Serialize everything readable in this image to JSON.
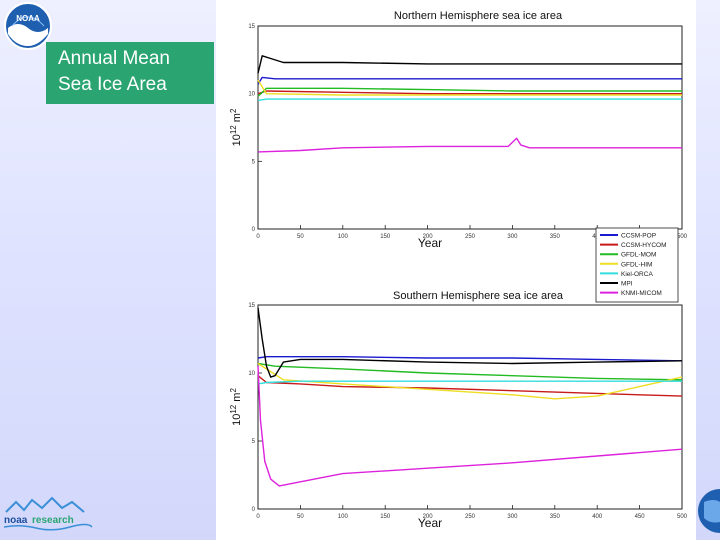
{
  "slide": {
    "title_line1": "Annual Mean",
    "title_line2": "Sea Ice Area",
    "logo_text": "NOAA",
    "footer_logo_a": "noaa",
    "footer_logo_b": "research",
    "colors": {
      "title_box": "#2aa571",
      "background": "#dfe3ff"
    }
  },
  "legend": [
    {
      "label": "CCSM-POP",
      "color": "#1a1acf"
    },
    {
      "label": "CCSM-HYCOM",
      "color": "#c81a1a"
    },
    {
      "label": "GFDL-MOM",
      "color": "#22bb22"
    },
    {
      "label": "GFDL-HIM",
      "color": "#eedd22"
    },
    {
      "label": "Kiel-ORCA",
      "color": "#33dddd"
    },
    {
      "label": "MPI",
      "color": "#000000"
    },
    {
      "label": "KNMI-MICOM",
      "color": "#dd22dd"
    }
  ],
  "chart_data": [
    {
      "type": "line",
      "title": "Northern Hemisphere sea ice area",
      "xlabel": "Year",
      "ylabel": "10^12 m^2",
      "xlim": [
        0,
        500
      ],
      "ylim": [
        0,
        15
      ],
      "xticks": [
        0,
        50,
        100,
        150,
        200,
        250,
        300,
        350,
        400,
        450,
        500
      ],
      "yticks": [
        0,
        5,
        10,
        15
      ],
      "series": [
        {
          "name": "CCSM-POP",
          "x": [
            0,
            5,
            20,
            100,
            200,
            300,
            400,
            500
          ],
          "y": [
            10.7,
            11.2,
            11.1,
            11.1,
            11.1,
            11.1,
            11.1,
            11.1
          ]
        },
        {
          "name": "CCSM-HYCOM",
          "x": [
            0,
            10,
            100,
            200,
            250,
            300,
            400,
            500
          ],
          "y": [
            10.0,
            10.2,
            10.1,
            10.0,
            10.0,
            10.0,
            10.0,
            10.0
          ]
        },
        {
          "name": "GFDL-MOM",
          "x": [
            0,
            10,
            100,
            200,
            300,
            400,
            500
          ],
          "y": [
            9.8,
            10.4,
            10.4,
            10.3,
            10.2,
            10.2,
            10.2
          ]
        },
        {
          "name": "GFDL-HIM",
          "x": [
            0,
            10,
            100,
            200,
            300,
            400,
            500
          ],
          "y": [
            11.0,
            10.0,
            9.9,
            9.9,
            9.9,
            9.9,
            9.9
          ]
        },
        {
          "name": "Kiel-ORCA",
          "x": [
            0,
            10,
            100,
            200,
            300,
            400,
            500
          ],
          "y": [
            9.5,
            9.6,
            9.6,
            9.6,
            9.6,
            9.6,
            9.6
          ]
        },
        {
          "name": "MPI",
          "x": [
            0,
            5,
            15,
            30,
            100,
            200,
            300,
            400,
            500
          ],
          "y": [
            11.5,
            12.8,
            12.6,
            12.3,
            12.3,
            12.2,
            12.2,
            12.2,
            12.2
          ]
        },
        {
          "name": "KNMI-MICOM",
          "x": [
            0,
            50,
            100,
            200,
            295,
            305,
            310,
            320,
            400,
            500
          ],
          "y": [
            5.7,
            5.8,
            6.0,
            6.1,
            6.1,
            6.7,
            6.2,
            6.0,
            6.0,
            6.0
          ]
        }
      ]
    },
    {
      "type": "line",
      "title": "Southern Hemisphere sea ice area",
      "xlabel": "Year",
      "ylabel": "10^12 m^2",
      "xlim": [
        0,
        500
      ],
      "ylim": [
        0,
        15
      ],
      "xticks": [
        0,
        50,
        100,
        150,
        200,
        250,
        300,
        350,
        400,
        450,
        500
      ],
      "yticks": [
        0,
        5,
        10,
        15
      ],
      "series": [
        {
          "name": "CCSM-POP",
          "x": [
            0,
            10,
            100,
            200,
            300,
            400,
            500
          ],
          "y": [
            11.1,
            11.2,
            11.2,
            11.1,
            11.1,
            11.0,
            10.9
          ]
        },
        {
          "name": "CCSM-HYCOM",
          "x": [
            0,
            10,
            50,
            100,
            200,
            300,
            400,
            450,
            500
          ],
          "y": [
            9.8,
            9.3,
            9.2,
            9.0,
            8.9,
            8.7,
            8.5,
            8.4,
            8.3
          ]
        },
        {
          "name": "GFDL-MOM",
          "x": [
            0,
            20,
            100,
            200,
            300,
            400,
            500
          ],
          "y": [
            10.7,
            10.5,
            10.3,
            10.0,
            9.8,
            9.6,
            9.5
          ]
        },
        {
          "name": "GFDL-HIM",
          "x": [
            0,
            30,
            100,
            200,
            300,
            350,
            400,
            450,
            500
          ],
          "y": [
            10.7,
            9.5,
            9.2,
            8.8,
            8.4,
            8.1,
            8.3,
            9.0,
            9.7
          ]
        },
        {
          "name": "Kiel-ORCA",
          "x": [
            0,
            10,
            50,
            100,
            200,
            300,
            400,
            500
          ],
          "y": [
            9.2,
            9.3,
            9.4,
            9.4,
            9.4,
            9.4,
            9.4,
            9.4
          ]
        },
        {
          "name": "MPI",
          "x": [
            0,
            5,
            10,
            15,
            20,
            30,
            50,
            100,
            200,
            300,
            400,
            500
          ],
          "y": [
            14.8,
            12.5,
            10.5,
            9.7,
            9.8,
            10.8,
            11.0,
            11.0,
            10.8,
            10.7,
            10.8,
            10.9
          ]
        },
        {
          "name": "KNMI-MICOM",
          "x": [
            0,
            3,
            8,
            15,
            25,
            50,
            100,
            200,
            300,
            400,
            500
          ],
          "y": [
            10.5,
            6.5,
            3.5,
            2.2,
            1.7,
            2.0,
            2.6,
            3.0,
            3.4,
            3.9,
            4.4
          ]
        }
      ]
    }
  ]
}
